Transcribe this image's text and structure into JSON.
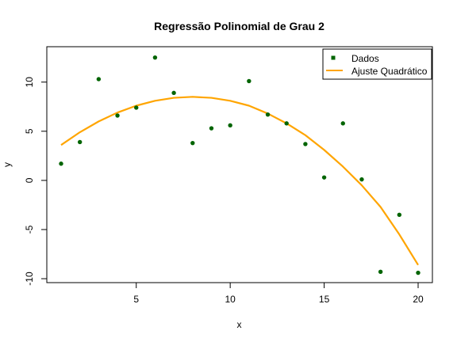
{
  "chart_data": {
    "type": "scatter",
    "title": "Regressão Polinomial de Grau 2",
    "xlabel": "x",
    "ylabel": "y",
    "xlim": [
      0.24,
      20.76
    ],
    "ylim": [
      -10.4,
      13.6
    ],
    "x_ticks": [
      5,
      10,
      15,
      20
    ],
    "y_ticks": [
      -10,
      -5,
      0,
      5,
      10
    ],
    "grid": false,
    "legend_position": "top-right",
    "series": [
      {
        "name": "Dados",
        "kind": "points",
        "color": "#006400",
        "x": [
          1,
          2,
          3,
          4,
          5,
          6,
          7,
          8,
          9,
          10,
          11,
          12,
          13,
          14,
          15,
          16,
          17,
          18,
          19,
          20
        ],
        "y": [
          1.7,
          3.9,
          10.3,
          6.6,
          7.4,
          12.5,
          8.9,
          3.8,
          5.3,
          5.6,
          10.1,
          6.7,
          5.8,
          3.7,
          0.3,
          5.8,
          0.1,
          -9.3,
          -3.5,
          -9.4
        ]
      },
      {
        "name": "Ajuste Quadrático",
        "kind": "line",
        "color": "#FFA500",
        "x": [
          1,
          2,
          3,
          4,
          5,
          6,
          7,
          8,
          9,
          10,
          11,
          12,
          13,
          14,
          15,
          16,
          17,
          18,
          19,
          20
        ],
        "y": [
          3.6,
          4.9,
          6.0,
          6.9,
          7.6,
          8.1,
          8.4,
          8.5,
          8.4,
          8.1,
          7.6,
          6.8,
          5.8,
          4.6,
          3.1,
          1.4,
          -0.5,
          -2.7,
          -5.5,
          -8.6
        ]
      }
    ]
  }
}
